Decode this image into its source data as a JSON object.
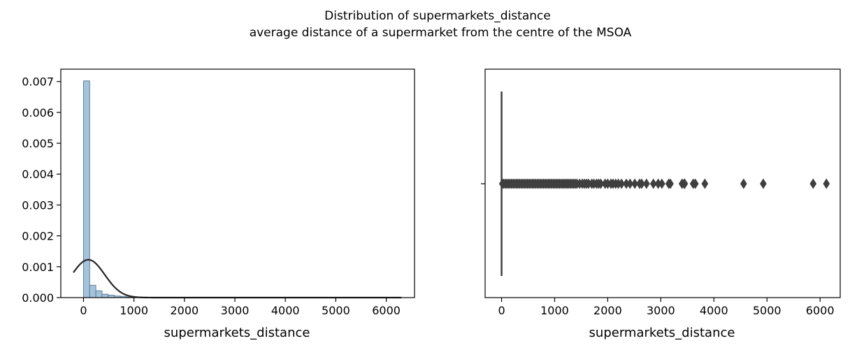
{
  "figure": {
    "title_line1": "Distribution of supermarkets_distance",
    "title_line2": "average distance of a supermarket from the centre of the MSOA"
  },
  "chart_data": [
    {
      "type": "bar",
      "subtype": "histogram-with-density",
      "xlabel": "supermarkets_distance",
      "ylabel": "",
      "xlim": [
        -450,
        6560
      ],
      "ylim": [
        0,
        0.0074
      ],
      "xticks": [
        0,
        1000,
        2000,
        3000,
        4000,
        5000,
        6000
      ],
      "yticks": [
        0.0,
        0.001,
        0.002,
        0.003,
        0.004,
        0.005,
        0.006,
        0.007
      ],
      "ytick_labels": [
        "0.000",
        "0.001",
        "0.002",
        "0.003",
        "0.004",
        "0.005",
        "0.006",
        "0.007"
      ],
      "bin_width": 122,
      "bins": [
        {
          "x0": 0,
          "x1": 122,
          "density": 0.00702
        },
        {
          "x0": 122,
          "x1": 244,
          "density": 0.0004
        },
        {
          "x0": 244,
          "x1": 366,
          "density": 0.00022
        },
        {
          "x0": 366,
          "x1": 488,
          "density": 0.00011
        },
        {
          "x0": 488,
          "x1": 610,
          "density": 8e-05
        },
        {
          "x0": 610,
          "x1": 732,
          "density": 5e-05
        },
        {
          "x0": 732,
          "x1": 854,
          "density": 4e-05
        },
        {
          "x0": 854,
          "x1": 976,
          "density": 2e-05
        },
        {
          "x0": 976,
          "x1": 1098,
          "density": 1.5e-05
        },
        {
          "x0": 1098,
          "x1": 1220,
          "density": 1e-05
        },
        {
          "x0": 1220,
          "x1": 1342,
          "density": 8e-06
        },
        {
          "x0": 1342,
          "x1": 1464,
          "density": 6e-06
        },
        {
          "x0": 1464,
          "x1": 1586,
          "density": 5e-06
        },
        {
          "x0": 1586,
          "x1": 1708,
          "density": 4e-06
        },
        {
          "x0": 1708,
          "x1": 1830,
          "density": 3e-06
        },
        {
          "x0": 1830,
          "x1": 1952,
          "density": 2e-06
        },
        {
          "x0": 1952,
          "x1": 2074,
          "density": 2e-06
        },
        {
          "x0": 2074,
          "x1": 2196,
          "density": 1.5e-06
        },
        {
          "x0": 2196,
          "x1": 2318,
          "density": 1.2e-06
        },
        {
          "x0": 2318,
          "x1": 2440,
          "density": 1e-06
        }
      ],
      "density_curve": {
        "description": "fitted normal",
        "mean": 95,
        "std": 325,
        "x_range": [
          -200,
          6300
        ]
      },
      "bar_color": "#a5c3db",
      "bar_edge_color": "#5e7f99",
      "curve_color": "#262626"
    },
    {
      "type": "scatter",
      "subtype": "boxplot",
      "xlabel": "supermarkets_distance",
      "ylabel": "",
      "xlim": [
        -310,
        6380
      ],
      "xticks": [
        0,
        1000,
        2000,
        3000,
        4000,
        5000,
        6000
      ],
      "box": {
        "q1": 0,
        "median": 0,
        "q3": 0,
        "whisker_low": 0,
        "whisker_high": 0
      },
      "outliers": [
        15,
        40,
        70,
        100,
        130,
        160,
        190,
        220,
        250,
        280,
        310,
        340,
        370,
        400,
        430,
        460,
        490,
        520,
        550,
        580,
        610,
        640,
        670,
        700,
        730,
        760,
        790,
        820,
        850,
        880,
        910,
        940,
        970,
        1000,
        1030,
        1060,
        1090,
        1120,
        1150,
        1180,
        1210,
        1240,
        1270,
        1300,
        1330,
        1360,
        1390,
        1420,
        1470,
        1520,
        1560,
        1600,
        1640,
        1700,
        1740,
        1790,
        1830,
        1870,
        1950,
        2000,
        2060,
        2100,
        2150,
        2200,
        2260,
        2350,
        2420,
        2510,
        2600,
        2640,
        2730,
        2860,
        2950,
        3020,
        3150,
        3180,
        3400,
        3440,
        3450,
        3610,
        3650,
        3830,
        4560,
        4930,
        5870,
        6120
      ],
      "marker_color": "#3f3f3f"
    }
  ]
}
